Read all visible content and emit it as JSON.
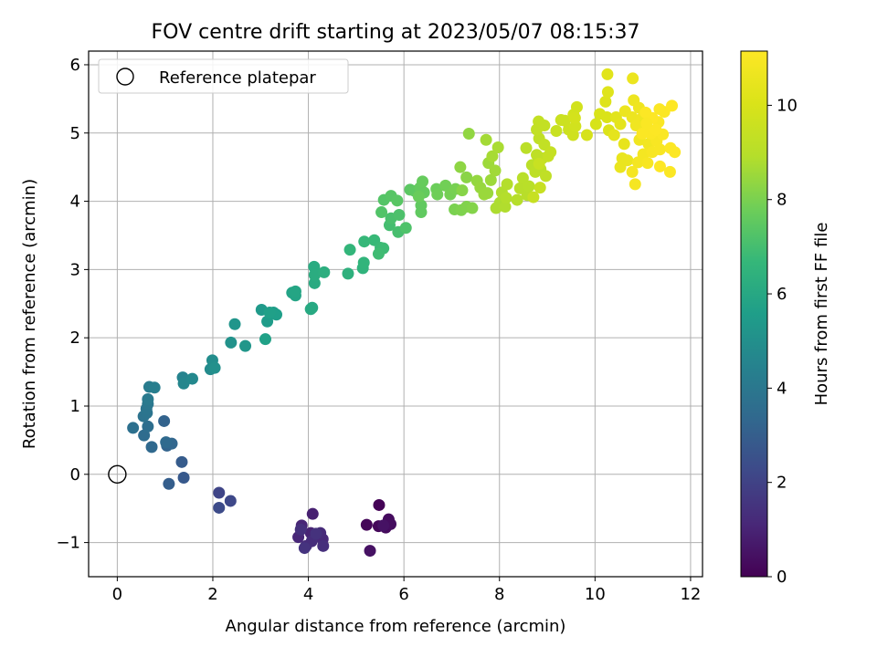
{
  "chart_data": {
    "type": "scatter",
    "title": "FOV centre drift starting at 2023/05/07 08:15:37",
    "xlabel": "Angular distance from reference (arcmin)",
    "ylabel": "Rotation from reference (arcmin)",
    "xlim": [
      -0.6,
      12.25
    ],
    "ylim": [
      -1.5,
      6.2
    ],
    "xticks": [
      0,
      2,
      4,
      6,
      8,
      10,
      12
    ],
    "yticks": [
      -1,
      0,
      1,
      2,
      3,
      4,
      5,
      6
    ],
    "grid": true,
    "legend": {
      "placement": "top-left",
      "entries": [
        "Reference platepar"
      ]
    },
    "reference_point": {
      "x": 0,
      "y": 0,
      "marker": "open-circle"
    },
    "colorbar": {
      "label": "Hours from first FF file",
      "colormap": "viridis",
      "range": [
        0,
        11.15
      ],
      "ticks": [
        0,
        2,
        4,
        6,
        8,
        10
      ]
    },
    "series": [
      {
        "color_by": "hours",
        "points": [
          [
            5.48,
            -0.45,
            0.05
          ],
          [
            5.22,
            -0.74,
            0.15
          ],
          [
            5.47,
            -0.76,
            0.2
          ],
          [
            5.62,
            -0.78,
            0.25
          ],
          [
            5.68,
            -0.66,
            0.3
          ],
          [
            5.72,
            -0.73,
            0.35
          ],
          [
            5.29,
            -1.12,
            0.45
          ],
          [
            5.57,
            -0.75,
            0.5
          ],
          [
            4.09,
            -0.58,
            0.9
          ],
          [
            4.05,
            -0.86,
            1.0
          ],
          [
            3.86,
            -0.75,
            1.05
          ],
          [
            3.79,
            -0.92,
            1.1
          ],
          [
            4.3,
            -0.95,
            1.15
          ],
          [
            4.25,
            -0.86,
            1.2
          ],
          [
            3.95,
            -1.05,
            1.25
          ],
          [
            4.07,
            -0.98,
            1.3
          ],
          [
            4.31,
            -1.05,
            1.35
          ],
          [
            3.84,
            -0.81,
            1.4
          ],
          [
            4.16,
            -0.87,
            1.45
          ],
          [
            3.92,
            -1.08,
            1.5
          ],
          [
            2.13,
            -0.27,
            2.1
          ],
          [
            2.37,
            -0.39,
            2.2
          ],
          [
            2.13,
            -0.49,
            2.3
          ],
          [
            1.39,
            -0.05,
            2.8
          ],
          [
            1.35,
            0.18,
            2.9
          ],
          [
            1.08,
            -0.14,
            3.0
          ],
          [
            0.98,
            0.78,
            3.15
          ],
          [
            1.04,
            0.42,
            3.2
          ],
          [
            1.14,
            0.45,
            3.3
          ],
          [
            0.72,
            0.4,
            3.4
          ],
          [
            1.02,
            0.47,
            3.45
          ],
          [
            0.56,
            0.57,
            3.5
          ],
          [
            0.64,
            0.7,
            3.6
          ],
          [
            0.33,
            0.68,
            3.7
          ],
          [
            0.55,
            0.85,
            3.8
          ],
          [
            0.62,
            0.9,
            3.85
          ],
          [
            0.61,
            0.96,
            3.9
          ],
          [
            0.64,
            1.03,
            4.0
          ],
          [
            0.64,
            1.1,
            4.1
          ],
          [
            0.67,
            1.28,
            4.2
          ],
          [
            0.78,
            1.27,
            4.3
          ],
          [
            1.37,
            1.42,
            4.5
          ],
          [
            1.39,
            1.33,
            4.6
          ],
          [
            1.57,
            1.4,
            4.7
          ],
          [
            1.95,
            1.54,
            4.8
          ],
          [
            1.99,
            1.67,
            4.9
          ],
          [
            2.04,
            1.56,
            5.0
          ],
          [
            2.38,
            1.93,
            5.1
          ],
          [
            2.46,
            2.2,
            5.2
          ],
          [
            2.68,
            1.88,
            5.25
          ],
          [
            3.02,
            2.41,
            5.4
          ],
          [
            3.14,
            2.24,
            5.5
          ],
          [
            3.27,
            2.37,
            5.55
          ],
          [
            3.33,
            2.34,
            5.6
          ],
          [
            3.19,
            2.37,
            5.65
          ],
          [
            3.1,
            1.98,
            5.7
          ],
          [
            3.66,
            2.66,
            5.8
          ],
          [
            3.73,
            2.62,
            5.85
          ],
          [
            3.73,
            2.68,
            5.9
          ],
          [
            4.08,
            2.44,
            6.0
          ],
          [
            4.05,
            2.42,
            6.05
          ],
          [
            4.13,
            2.8,
            6.1
          ],
          [
            4.12,
            3.04,
            6.15
          ],
          [
            4.13,
            2.92,
            6.2
          ],
          [
            4.33,
            2.96,
            6.3
          ],
          [
            4.83,
            2.94,
            6.4
          ],
          [
            5.14,
            3.02,
            6.5
          ],
          [
            5.16,
            3.1,
            6.55
          ],
          [
            4.87,
            3.29,
            6.6
          ],
          [
            5.17,
            3.41,
            6.7
          ],
          [
            5.38,
            3.43,
            6.75
          ],
          [
            5.51,
            3.32,
            6.8
          ],
          [
            5.57,
            3.31,
            6.85
          ],
          [
            5.47,
            3.23,
            6.9
          ],
          [
            5.7,
            3.65,
            7.0
          ],
          [
            5.88,
            3.55,
            7.05
          ],
          [
            5.73,
            3.75,
            7.1
          ],
          [
            5.9,
            3.8,
            7.15
          ],
          [
            6.04,
            3.61,
            7.2
          ],
          [
            5.53,
            3.84,
            7.25
          ],
          [
            5.58,
            4.02,
            7.3
          ],
          [
            5.73,
            4.08,
            7.35
          ],
          [
            5.86,
            4.01,
            7.4
          ],
          [
            6.13,
            4.17,
            7.45
          ],
          [
            6.23,
            4.15,
            7.5
          ],
          [
            6.36,
            3.84,
            7.55
          ],
          [
            6.36,
            3.94,
            7.55
          ],
          [
            6.34,
            4.2,
            7.6
          ],
          [
            6.42,
            4.13,
            7.6
          ],
          [
            6.39,
            4.29,
            7.65
          ],
          [
            6.31,
            4.07,
            7.7
          ],
          [
            6.68,
            4.18,
            7.75
          ],
          [
            6.7,
            4.1,
            7.8
          ],
          [
            6.87,
            4.23,
            7.85
          ],
          [
            6.97,
            4.1,
            7.9
          ],
          [
            7.08,
            4.18,
            7.95
          ],
          [
            7.06,
            3.88,
            8.0
          ],
          [
            7.2,
            3.87,
            8.05
          ],
          [
            7.31,
            3.92,
            8.1
          ],
          [
            7.43,
            3.9,
            8.15
          ],
          [
            7.22,
            4.16,
            8.2
          ],
          [
            7.31,
            4.35,
            8.25
          ],
          [
            7.18,
            4.5,
            8.3
          ],
          [
            7.36,
            4.99,
            8.35
          ],
          [
            7.53,
            4.3,
            8.4
          ],
          [
            7.6,
            4.2,
            8.45
          ],
          [
            7.68,
            4.1,
            8.5
          ],
          [
            7.75,
            4.12,
            8.5
          ],
          [
            7.82,
            4.31,
            8.55
          ],
          [
            7.77,
            4.56,
            8.55
          ],
          [
            7.91,
            4.45,
            8.6
          ],
          [
            7.72,
            4.9,
            8.65
          ],
          [
            7.85,
            4.66,
            8.7
          ],
          [
            7.97,
            4.79,
            8.75
          ],
          [
            7.93,
            3.9,
            8.8
          ],
          [
            8.01,
            3.98,
            8.8
          ],
          [
            8.12,
            3.92,
            8.85
          ],
          [
            8.05,
            4.13,
            8.85
          ],
          [
            8.16,
            4.25,
            8.9
          ],
          [
            8.14,
            4.05,
            8.9
          ],
          [
            8.37,
            4.02,
            8.95
          ],
          [
            8.43,
            4.19,
            9.0
          ],
          [
            8.58,
            4.09,
            9.0
          ],
          [
            8.49,
            4.34,
            9.05
          ],
          [
            8.62,
            4.22,
            9.05
          ],
          [
            8.68,
            4.53,
            9.1
          ],
          [
            8.56,
            4.78,
            9.1
          ],
          [
            8.75,
            4.43,
            9.15
          ],
          [
            8.86,
            4.47,
            9.15
          ],
          [
            8.78,
            4.68,
            9.2
          ],
          [
            8.9,
            4.63,
            9.2
          ],
          [
            8.97,
            4.37,
            9.25
          ],
          [
            8.83,
            4.92,
            9.25
          ],
          [
            8.94,
            4.83,
            9.3
          ],
          [
            8.78,
            5.05,
            9.3
          ],
          [
            8.82,
            5.17,
            9.35
          ],
          [
            8.94,
            5.11,
            9.35
          ],
          [
            9.02,
            4.66,
            9.4
          ],
          [
            9.07,
            4.72,
            9.4
          ],
          [
            8.85,
            4.2,
            9.45
          ],
          [
            8.71,
            4.06,
            9.45
          ],
          [
            8.83,
            4.55,
            9.5
          ],
          [
            9.19,
            5.03,
            9.5
          ],
          [
            9.29,
            5.19,
            9.55
          ],
          [
            9.37,
            5.18,
            9.6
          ],
          [
            9.45,
            5.05,
            9.65
          ],
          [
            9.54,
            4.97,
            9.7
          ],
          [
            9.59,
            5.1,
            9.75
          ],
          [
            9.55,
            5.27,
            9.8
          ],
          [
            9.62,
            5.38,
            9.8
          ],
          [
            9.58,
            5.22,
            9.85
          ],
          [
            9.83,
            4.97,
            9.9
          ],
          [
            10.02,
            5.13,
            9.95
          ],
          [
            10.1,
            5.28,
            10.0
          ],
          [
            10.25,
            5.23,
            10.05
          ],
          [
            10.29,
            5.04,
            10.1
          ],
          [
            10.22,
            5.46,
            10.15
          ],
          [
            10.27,
            5.6,
            10.2
          ],
          [
            10.26,
            5.86,
            10.25
          ],
          [
            10.44,
            5.23,
            10.3
          ],
          [
            10.53,
            5.13,
            10.35
          ],
          [
            10.4,
            4.97,
            10.4
          ],
          [
            10.61,
            4.84,
            10.45
          ],
          [
            10.57,
            4.63,
            10.5
          ],
          [
            10.53,
            4.5,
            10.55
          ],
          [
            10.68,
            4.6,
            10.55
          ],
          [
            10.79,
            5.8,
            10.6
          ],
          [
            10.63,
            5.32,
            10.6
          ],
          [
            10.78,
            5.23,
            10.65
          ],
          [
            10.81,
            5.48,
            10.65
          ],
          [
            10.92,
            5.37,
            10.7
          ],
          [
            10.99,
            5.22,
            10.7
          ],
          [
            10.86,
            5.11,
            10.75
          ],
          [
            10.93,
            4.9,
            10.75
          ],
          [
            11.06,
            5.08,
            10.8
          ],
          [
            11.12,
            4.84,
            10.8
          ],
          [
            11.01,
            4.69,
            10.85
          ],
          [
            10.9,
            4.57,
            10.85
          ],
          [
            10.78,
            4.43,
            10.9
          ],
          [
            10.84,
            4.25,
            10.9
          ],
          [
            11.1,
            4.56,
            10.95
          ],
          [
            11.2,
            4.72,
            10.95
          ],
          [
            11.29,
            4.88,
            11.0
          ],
          [
            11.36,
            4.76,
            11.0
          ],
          [
            11.42,
            4.98,
            11.05
          ],
          [
            11.33,
            5.16,
            11.05
          ],
          [
            11.45,
            5.31,
            11.1
          ],
          [
            11.35,
            5.35,
            11.1
          ],
          [
            11.57,
            4.43,
            11.1
          ],
          [
            11.58,
            4.78,
            11.12
          ],
          [
            11.67,
            4.72,
            11.13
          ],
          [
            11.36,
            4.51,
            11.14
          ],
          [
            11.61,
            5.4,
            11.15
          ],
          [
            11.2,
            5.22,
            11.15
          ],
          [
            11.06,
            5.3,
            11.12
          ],
          [
            11.17,
            4.99,
            11.1
          ],
          [
            11.27,
            5.05,
            11.11
          ],
          [
            10.99,
            4.99,
            11.08
          ],
          [
            11.08,
            5.14,
            11.05
          ]
        ]
      }
    ]
  }
}
